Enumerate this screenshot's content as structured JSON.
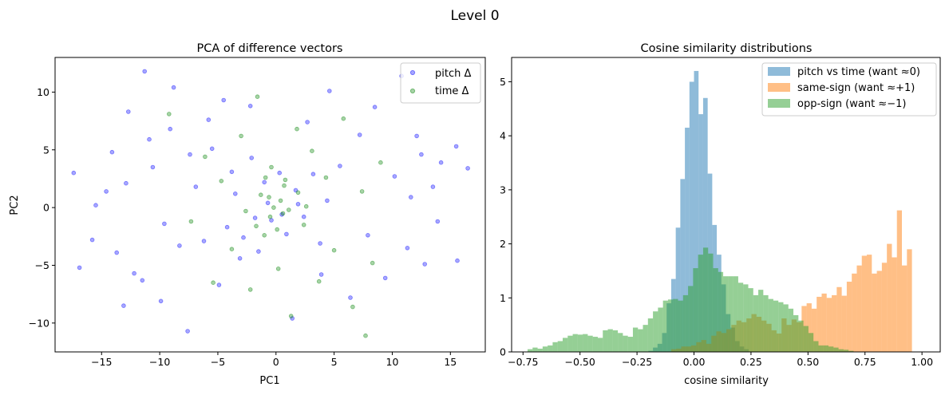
{
  "figure_title": "Level 0",
  "chart_data": [
    {
      "type": "scatter",
      "title": "PCA of difference vectors",
      "xlabel": "PC1",
      "ylabel": "PC2",
      "xlim": [
        -19,
        18
      ],
      "ylim": [
        -12.5,
        13.0
      ],
      "xticks": [
        -15,
        -10,
        -5,
        0,
        5,
        10,
        15
      ],
      "xtick_labels": [
        "−15",
        "−10",
        "−5",
        "0",
        "5",
        "10",
        "15"
      ],
      "yticks": [
        -10,
        -5,
        0,
        5,
        10
      ],
      "ytick_labels": [
        "−10",
        "−5",
        "0",
        "5",
        "10"
      ],
      "legend_position": "top-right",
      "series": [
        {
          "name": "pitch Δ",
          "color": "#0000ff",
          "points": [
            [
              -17.4,
              3.0
            ],
            [
              -16.9,
              -5.2
            ],
            [
              -15.5,
              0.2
            ],
            [
              -14.1,
              4.8
            ],
            [
              -13.1,
              -8.5
            ],
            [
              -12.9,
              2.1
            ],
            [
              -12.7,
              8.3
            ],
            [
              -11.5,
              -6.3
            ],
            [
              -11.3,
              11.8
            ],
            [
              -10.6,
              3.5
            ],
            [
              -9.6,
              -1.4
            ],
            [
              -9.1,
              6.8
            ],
            [
              -8.8,
              10.4
            ],
            [
              -7.6,
              -10.7
            ],
            [
              -7.4,
              4.6
            ],
            [
              -6.9,
              1.8
            ],
            [
              -6.2,
              -2.9
            ],
            [
              -5.8,
              7.6
            ],
            [
              -4.9,
              -6.7
            ],
            [
              -4.5,
              9.3
            ],
            [
              -3.8,
              3.1
            ],
            [
              -3.1,
              -4.4
            ],
            [
              -2.2,
              8.8
            ],
            [
              1.4,
              -9.6
            ],
            [
              2.7,
              7.4
            ],
            [
              3.9,
              -5.8
            ],
            [
              4.6,
              10.1
            ],
            [
              5.5,
              3.6
            ],
            [
              6.4,
              -7.8
            ],
            [
              7.2,
              6.3
            ],
            [
              7.9,
              -2.4
            ],
            [
              8.5,
              8.7
            ],
            [
              9.4,
              -6.1
            ],
            [
              10.2,
              2.7
            ],
            [
              10.8,
              11.4
            ],
            [
              11.3,
              -3.5
            ],
            [
              12.1,
              6.2
            ],
            [
              12.8,
              -4.9
            ],
            [
              13.5,
              1.8
            ],
            [
              14.2,
              3.9
            ],
            [
              15.5,
              5.3
            ],
            [
              15.6,
              -4.6
            ],
            [
              16.5,
              3.4
            ],
            [
              -15.8,
              -2.8
            ],
            [
              -14.6,
              1.4
            ],
            [
              -13.7,
              -3.9
            ],
            [
              -12.2,
              -5.7
            ],
            [
              -10.9,
              5.9
            ],
            [
              -9.9,
              -8.1
            ],
            [
              -8.3,
              -3.3
            ],
            [
              13.9,
              -1.2
            ],
            [
              12.5,
              4.6
            ],
            [
              11.6,
              0.9
            ],
            [
              -5.5,
              5.1
            ],
            [
              -4.2,
              -1.7
            ],
            [
              -3.5,
              1.2
            ],
            [
              -2.8,
              -2.6
            ],
            [
              -2.1,
              4.3
            ],
            [
              -1.5,
              -3.8
            ],
            [
              -1.0,
              2.2
            ],
            [
              -0.4,
              -1.1
            ],
            [
              0.3,
              3.0
            ],
            [
              0.9,
              -2.3
            ],
            [
              1.7,
              1.5
            ],
            [
              2.4,
              -0.8
            ],
            [
              3.2,
              2.9
            ],
            [
              3.8,
              -3.1
            ],
            [
              4.4,
              0.6
            ],
            [
              -0.7,
              0.4
            ],
            [
              0.5,
              -0.6
            ],
            [
              -1.8,
              -0.9
            ],
            [
              1.9,
              0.3
            ]
          ]
        },
        {
          "name": "time Δ",
          "color": "#008000",
          "points": [
            [
              -9.2,
              8.1
            ],
            [
              -7.3,
              -1.2
            ],
            [
              -6.1,
              4.4
            ],
            [
              -5.4,
              -6.5
            ],
            [
              -4.7,
              2.3
            ],
            [
              -3.8,
              -3.6
            ],
            [
              -3.0,
              6.2
            ],
            [
              -2.2,
              -7.1
            ],
            [
              -1.6,
              9.6
            ],
            [
              -1.0,
              -2.4
            ],
            [
              -0.4,
              3.5
            ],
            [
              0.2,
              -5.3
            ],
            [
              0.7,
              1.9
            ],
            [
              1.3,
              -9.4
            ],
            [
              1.8,
              6.8
            ],
            [
              2.4,
              -1.5
            ],
            [
              3.1,
              4.9
            ],
            [
              3.7,
              -6.4
            ],
            [
              4.3,
              2.6
            ],
            [
              5.0,
              -3.7
            ],
            [
              5.8,
              7.7
            ],
            [
              6.6,
              -8.6
            ],
            [
              7.4,
              1.4
            ],
            [
              7.7,
              -11.1
            ],
            [
              8.3,
              -4.8
            ],
            [
              9.0,
              3.9
            ],
            [
              -2.6,
              -0.3
            ],
            [
              -1.3,
              1.1
            ],
            [
              -0.5,
              -0.8
            ],
            [
              0.4,
              0.6
            ],
            [
              1.1,
              -0.2
            ],
            [
              1.9,
              1.3
            ],
            [
              -0.9,
              2.6
            ],
            [
              0.1,
              -1.9
            ],
            [
              0.8,
              2.4
            ],
            [
              -1.7,
              -1.6
            ],
            [
              2.6,
              0.1
            ],
            [
              -0.2,
              0.0
            ],
            [
              0.6,
              -0.5
            ],
            [
              -0.6,
              0.9
            ]
          ]
        }
      ]
    },
    {
      "type": "histogram",
      "title": "Cosine similarity distributions",
      "xlabel": "cosine similarity",
      "ylabel": "",
      "xlim": [
        -0.8,
        1.08
      ],
      "ylim": [
        0,
        5.45
      ],
      "xticks": [
        -0.75,
        -0.5,
        -0.25,
        0.0,
        0.25,
        0.5,
        0.75,
        1.0
      ],
      "xtick_labels": [
        "−0.75",
        "−0.50",
        "−0.25",
        "0.00",
        "0.25",
        "0.50",
        "0.75",
        "1.00"
      ],
      "yticks": [
        0,
        1,
        2,
        3,
        4,
        5
      ],
      "ytick_labels": [
        "0",
        "1",
        "2",
        "3",
        "4",
        "5"
      ],
      "legend_position": "top-right",
      "series": [
        {
          "name": "pitch vs time (want ≈0)",
          "color": "#1f77b4",
          "bin_start": -0.2,
          "bin_width": 0.02,
          "counts": [
            0.02,
            0.08,
            0.15,
            0.35,
            0.9,
            1.35,
            2.3,
            3.2,
            4.15,
            5.0,
            5.2,
            4.4,
            4.7,
            3.3,
            2.35,
            1.8,
            1.25,
            0.7,
            0.45,
            0.2,
            0.1,
            0.05
          ]
        },
        {
          "name": "same-sign (want ≈+1)",
          "color": "#ff7f0e",
          "bin_start": -0.1,
          "bin_width": 0.022,
          "counts": [
            0.05,
            0.06,
            0.1,
            0.1,
            0.12,
            0.18,
            0.22,
            0.15,
            0.3,
            0.38,
            0.35,
            0.42,
            0.5,
            0.58,
            0.55,
            0.62,
            0.7,
            0.65,
            0.58,
            0.52,
            0.4,
            0.34,
            0.62,
            0.5,
            0.6,
            0.55,
            0.85,
            0.9,
            0.8,
            1.02,
            1.08,
            1.0,
            1.05,
            1.2,
            1.04,
            1.3,
            1.45,
            1.6,
            1.78,
            1.8,
            1.45,
            1.5,
            1.65,
            2.0,
            1.75,
            2.62,
            1.6,
            1.9
          ]
        },
        {
          "name": "opp-sign (want ≈−1)",
          "color": "#2ca02c",
          "bin_start": -0.73,
          "bin_width": 0.022,
          "counts": [
            0.05,
            0.08,
            0.06,
            0.1,
            0.12,
            0.18,
            0.2,
            0.26,
            0.3,
            0.33,
            0.32,
            0.33,
            0.3,
            0.28,
            0.26,
            0.4,
            0.42,
            0.4,
            0.35,
            0.3,
            0.28,
            0.45,
            0.42,
            0.5,
            0.62,
            0.75,
            0.82,
            0.95,
            0.97,
            0.98,
            0.95,
            1.05,
            1.22,
            1.55,
            1.8,
            1.93,
            1.82,
            1.55,
            1.48,
            1.4,
            1.4,
            1.4,
            1.28,
            1.25,
            1.18,
            1.05,
            1.15,
            1.05,
            0.98,
            0.95,
            0.92,
            0.88,
            0.8,
            0.68,
            0.58,
            0.48,
            0.35,
            0.2,
            0.12,
            0.12,
            0.1,
            0.08,
            0.05,
            0.04,
            0.02
          ]
        }
      ]
    }
  ]
}
